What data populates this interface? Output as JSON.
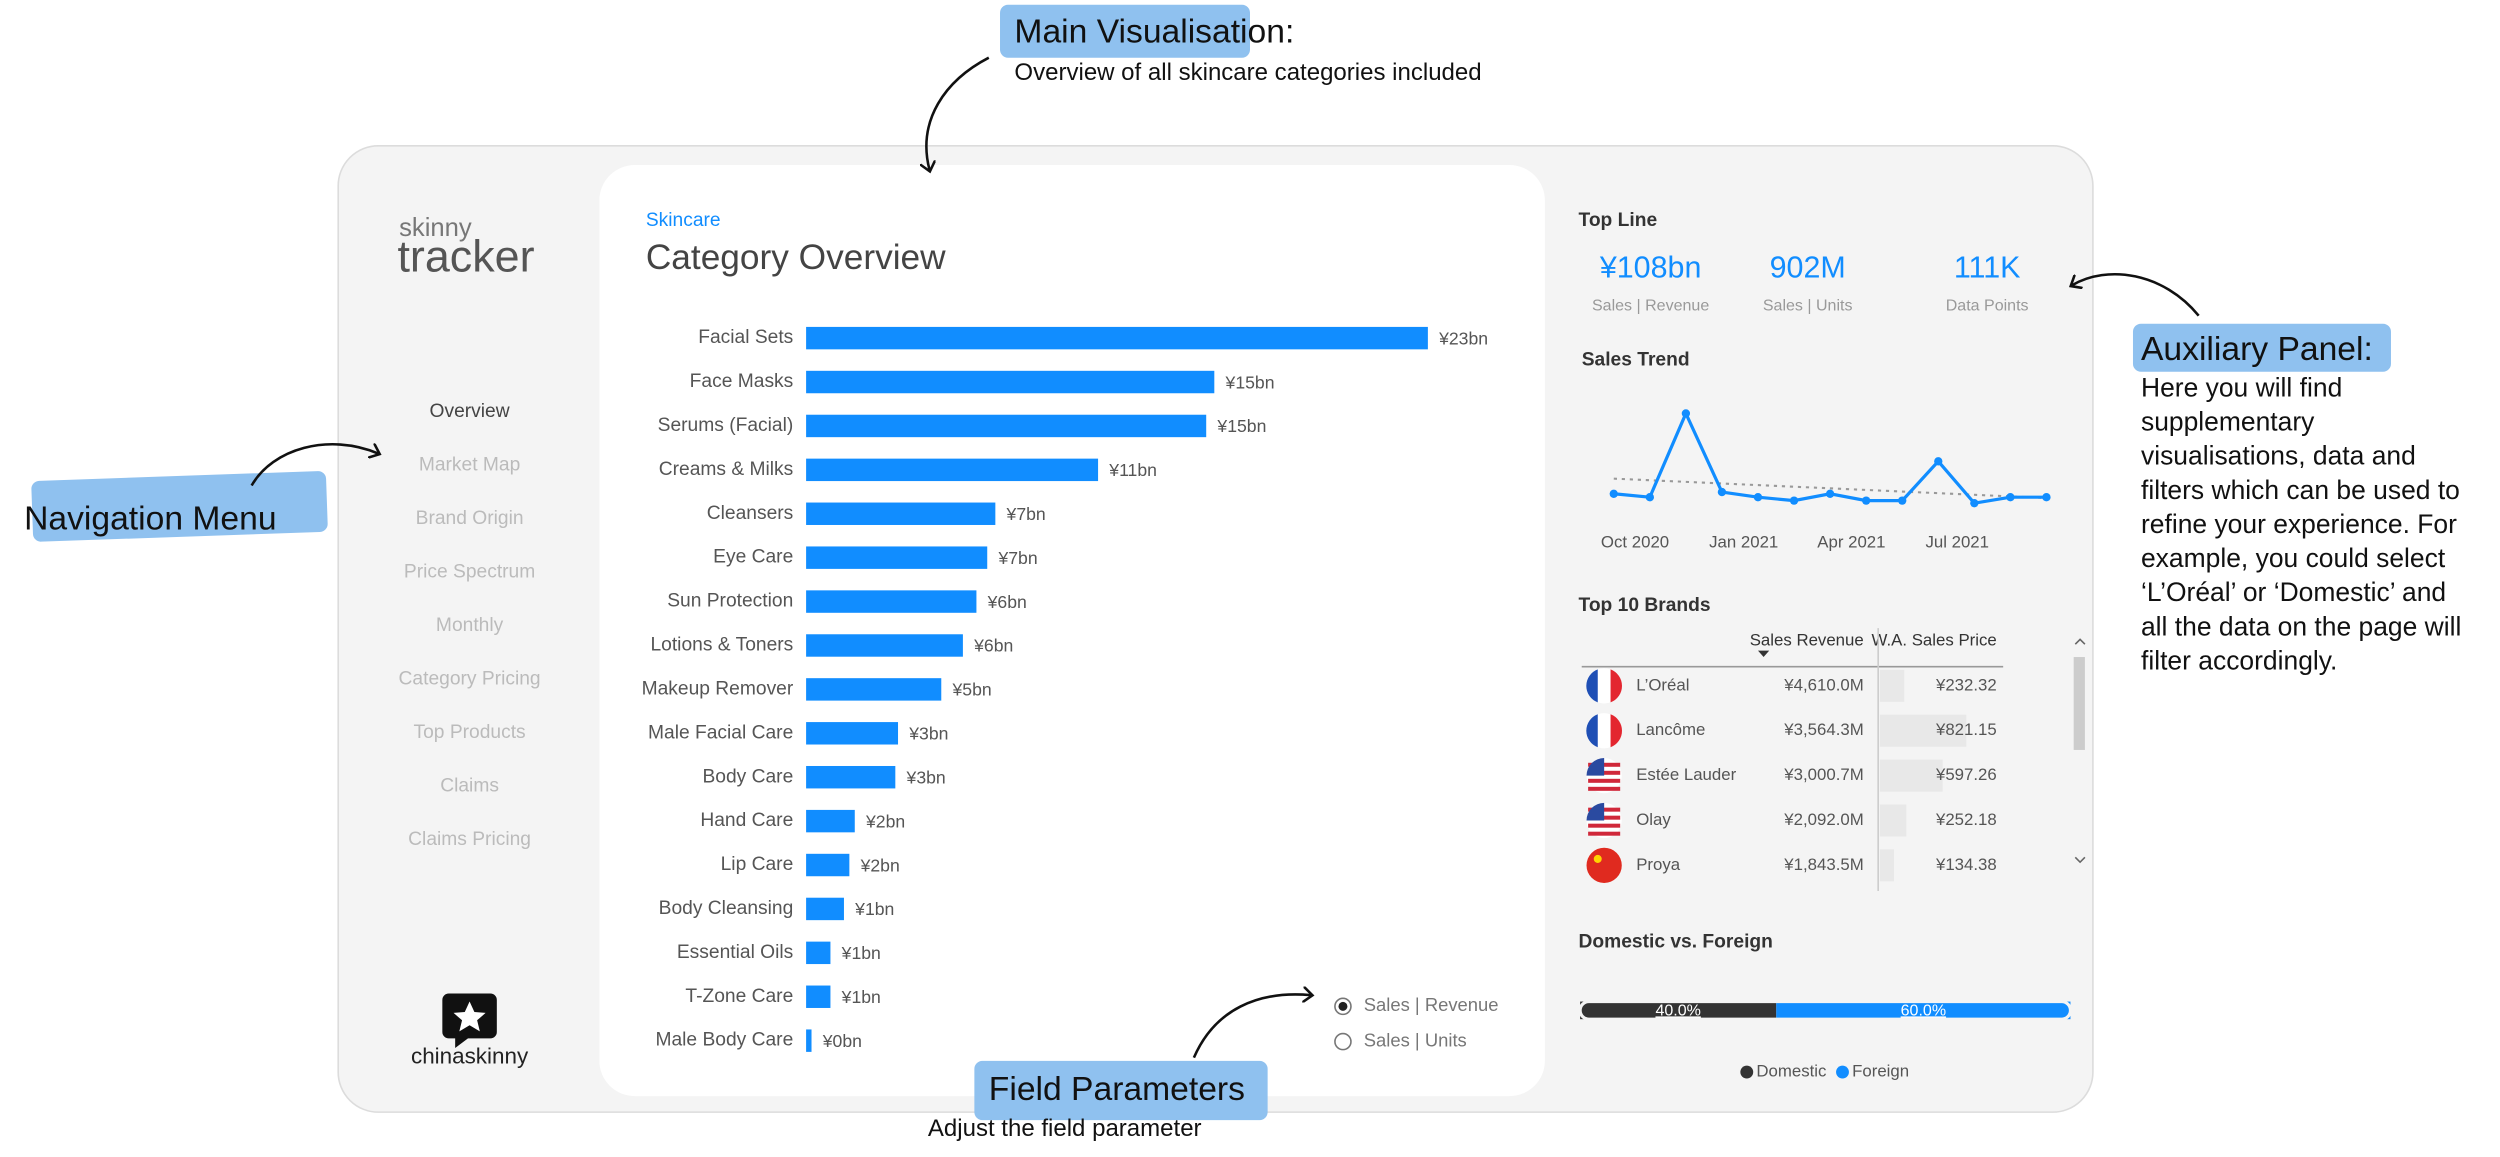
{
  "annotations": {
    "main_visualisation": {
      "title": "Main Visualisation:",
      "text": "Overview of all skincare categories included"
    },
    "navigation_menu": {
      "title": "Navigation Menu"
    },
    "auxiliary_panel": {
      "title": "Auxiliary Panel:",
      "lines": [
        "Here you will find",
        "supplementary",
        "visualisations, data and",
        "filters which can be used to",
        "refine your experience. For",
        "example, you could select",
        "‘L’Oréal’ or ‘Domestic’ and",
        "all the data on the page will",
        "filter accordingly."
      ]
    },
    "field_parameters": {
      "title": "Field Parameters",
      "text": "Adjust the field parameter"
    }
  },
  "logo": {
    "line1": "skinny",
    "line2": "tracker",
    "brand": "chinaskinny"
  },
  "nav": {
    "items": [
      "Overview",
      "Market Map",
      "Brand Origin",
      "Price Spectrum",
      "Monthly",
      "Category Pricing",
      "Top Products",
      "Claims",
      "Claims Pricing"
    ],
    "active": 0
  },
  "main": {
    "breadcrumb": "Skincare",
    "title": "Category Overview",
    "chart": {
      "type": "bar",
      "color": "#118DFF",
      "categories": [
        "Facial Sets",
        "Face Masks",
        "Serums (Facial)",
        "Creams & Milks",
        "Cleansers",
        "Eye Care",
        "Sun Protection",
        "Lotions & Toners",
        "Makeup Remover",
        "Male Facial Care",
        "Body Care",
        "Hand Care",
        "Lip Care",
        "Body Cleansing",
        "Essential Oils",
        "T-Zone Care",
        "Male Body Care"
      ],
      "values": [
        23,
        15.1,
        14.8,
        10.8,
        7.0,
        6.7,
        6.3,
        5.8,
        5.0,
        3.4,
        3.3,
        1.8,
        1.6,
        1.4,
        0.9,
        0.9,
        0.2
      ],
      "value_labels": [
        "¥23bn",
        "¥15bn",
        "¥15bn",
        "¥11bn",
        "¥7bn",
        "¥7bn",
        "¥6bn",
        "¥6bn",
        "¥5bn",
        "¥3bn",
        "¥3bn",
        "¥2bn",
        "¥2bn",
        "¥1bn",
        "¥1bn",
        "¥1bn",
        "¥0bn"
      ]
    },
    "field_parameters": {
      "options": [
        "Sales | Revenue",
        "Sales | Units"
      ],
      "selected": 0
    }
  },
  "aux": {
    "top_line": {
      "title": "Top Line",
      "kpis": [
        {
          "value": "¥108bn",
          "label": "Sales | Revenue"
        },
        {
          "value": "902M",
          "label": "Sales | Units"
        },
        {
          "value": "111K",
          "label": "Data Points"
        }
      ]
    },
    "sales_trend": {
      "title": "Sales Trend",
      "type": "line",
      "color": "#118DFF",
      "trend_line": true,
      "categories": [
        "Oct 2020",
        null,
        null,
        "Jan 2021",
        null,
        null,
        "Apr 2021",
        null,
        null,
        "Jul 2021",
        null,
        null,
        null
      ],
      "values": [
        7.6,
        7.2,
        17,
        7.8,
        7.2,
        6.8,
        7.6,
        6.8,
        6.8,
        11.4,
        6.5,
        7.2,
        7.2
      ]
    },
    "top_brands": {
      "title": "Top 10 Brands",
      "columns": [
        "Sales Revenue",
        "W.A. Sales Price"
      ],
      "rows": [
        {
          "brand": "L’Oréal",
          "revenue": "¥4,610.0M",
          "price": 232.32,
          "price_label": "¥232.32"
        },
        {
          "brand": "Lancôme",
          "revenue": "¥3,564.3M",
          "price": 821.15,
          "price_label": "¥821.15"
        },
        {
          "brand": "Estée Lauder",
          "revenue": "¥3,000.7M",
          "price": 597.26,
          "price_label": "¥597.26"
        },
        {
          "brand": "Olay",
          "revenue": "¥2,092.0M",
          "price": 252.18,
          "price_label": "¥252.18"
        },
        {
          "brand": "Proya",
          "revenue": "¥1,843.5M",
          "price": 134.38,
          "price_label": "¥134.38"
        }
      ]
    },
    "domestic_foreign": {
      "title": "Domestic vs. Foreign",
      "type": "bar",
      "series": [
        {
          "name": "Domestic",
          "color": "#333333",
          "values": [
            40
          ],
          "value_labels": [
            "40.0%"
          ]
        },
        {
          "name": "Foreign",
          "color": "#118DFF",
          "values": [
            60
          ],
          "value_labels": [
            "60.0%"
          ]
        }
      ]
    }
  }
}
